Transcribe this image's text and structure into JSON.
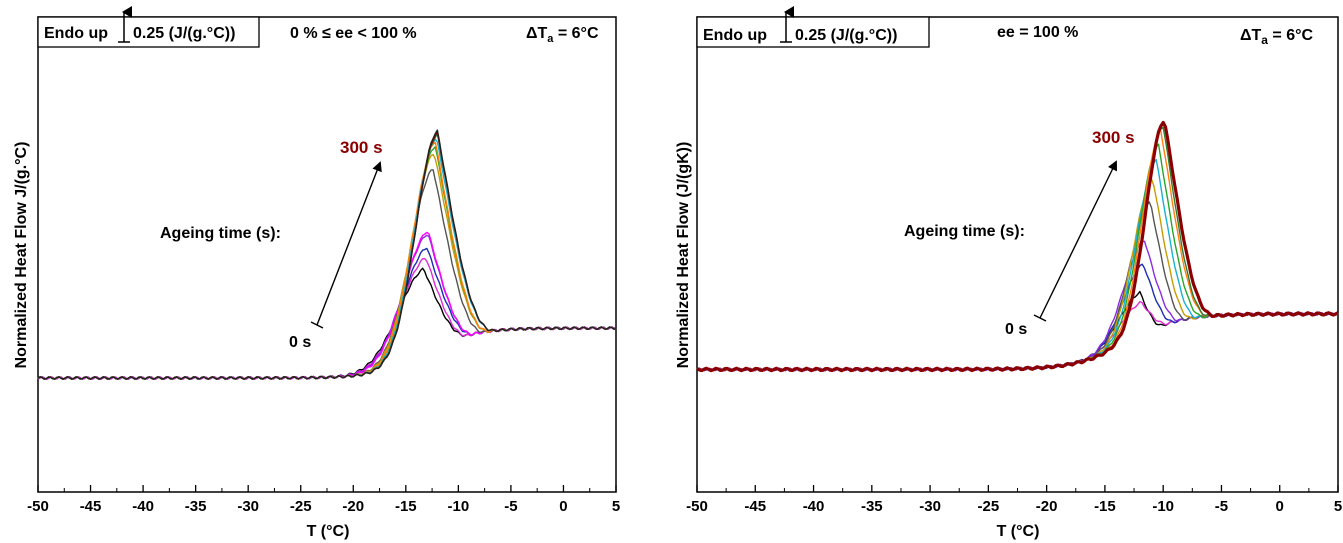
{
  "chart_data": [
    {
      "type": "line",
      "xlabel": "T (°C)",
      "ylabel": "Normalized Heat Flow J/(g.°C)",
      "xlim": [
        -50,
        5
      ],
      "xticks": [
        -50,
        -45,
        -40,
        -35,
        -30,
        -25,
        -20,
        -15,
        -10,
        -5,
        0,
        5
      ],
      "ylim": [
        0,
        1
      ],
      "grid": false,
      "legend_box": "Endo up",
      "scale_bar": "0.25 (J/(g.°C))",
      "condition": "0 % ≤ ee < 100 %",
      "delta_t": {
        "symbol": "ΔT",
        "sub": "a",
        "value": " = 6°C"
      },
      "arrow_start_label": "0 s",
      "arrow_end_label": "300 s",
      "arrow_caption": "Ageing time (s):",
      "baseline": {
        "base_left": 0.24,
        "base_right": 0.345,
        "x_lo": -50,
        "x_hi": 5
      },
      "series": [
        {
          "color": "#000000",
          "values": {
            "peak_x": -13.3,
            "peak_y": 0.47,
            "width": 3.6,
            "end_x": -9,
            "lw": 1.4
          }
        },
        {
          "color": "#e02bd6",
          "values": {
            "peak_x": -13.1,
            "peak_y": 0.494,
            "width": 3.5,
            "end_x": -9,
            "lw": 1.4
          }
        },
        {
          "color": "#1f2bb5",
          "values": {
            "peak_x": -13.0,
            "peak_y": 0.515,
            "width": 3.4,
            "end_x": -8.5,
            "lw": 1.4
          }
        },
        {
          "color": "#8a2be2",
          "values": {
            "peak_x": -12.9,
            "peak_y": 0.544,
            "width": 3.4,
            "end_x": -8.5,
            "lw": 1.4
          }
        },
        {
          "color": "#ff00ff",
          "values": {
            "peak_x": -12.9,
            "peak_y": 0.55,
            "width": 3.3,
            "end_x": -8.5,
            "lw": 1.4
          }
        },
        {
          "color": "#545454",
          "values": {
            "peak_x": -12.4,
            "peak_y": 0.68,
            "width": 3.1,
            "end_x": -7.5,
            "lw": 1.4
          }
        },
        {
          "color": "#c69c00",
          "values": {
            "peak_x": -12.3,
            "peak_y": 0.714,
            "width": 3.05,
            "end_x": -7,
            "lw": 1.4
          }
        },
        {
          "color": "#26a626",
          "values": {
            "peak_x": -12.2,
            "peak_y": 0.728,
            "width": 3.0,
            "end_x": -7,
            "lw": 1.4
          }
        },
        {
          "color": "#ff7f0e",
          "values": {
            "peak_x": -12.2,
            "peak_y": 0.738,
            "width": 3.0,
            "end_x": -7,
            "lw": 1.4
          }
        },
        {
          "color": "#1ab0d4",
          "values": {
            "peak_x": -12.1,
            "peak_y": 0.746,
            "width": 2.95,
            "end_x": -6.5,
            "lw": 1.4
          }
        },
        {
          "color": "#2e7d32",
          "values": {
            "peak_x": -12.0,
            "peak_y": 0.752,
            "width": 2.95,
            "end_x": -6.5,
            "lw": 1.4
          }
        },
        {
          "color": "#8b0000",
          "values": {
            "peak_x": -12.0,
            "peak_y": 0.756,
            "width": 2.9,
            "end_x": -6.5,
            "lw": 1.4
          }
        },
        {
          "color": "#222222",
          "values": {
            "peak_x": -12.0,
            "peak_y": 0.76,
            "width": 2.9,
            "end_x": -6.5,
            "lw": 1.4
          }
        }
      ]
    },
    {
      "type": "line",
      "xlabel": "T (°C)",
      "ylabel": "Normalized Heat Flow (J/(gK))",
      "xlim": [
        -50,
        5
      ],
      "xticks": [
        -50,
        -45,
        -40,
        -35,
        -30,
        -25,
        -20,
        -15,
        -10,
        -5,
        0,
        5
      ],
      "ylim": [
        0,
        1
      ],
      "grid": false,
      "legend_box": "Endo up",
      "scale_bar": "0.25 (J/(g.°C))",
      "condition": "ee = 100 %",
      "delta_t": {
        "symbol": "ΔT",
        "sub": "a",
        "value": " = 6°C"
      },
      "arrow_start_label": "0 s",
      "arrow_end_label": "300 s",
      "arrow_caption": "Ageing time (s):",
      "baseline": {
        "base_left": 0.258,
        "base_right": 0.375,
        "x_lo": -50,
        "x_hi": 5
      },
      "series": [
        {
          "color": "#000000",
          "values": {
            "peak_x": -12.0,
            "peak_y": 0.42,
            "width": 2.6,
            "end_x": -10,
            "lw": 1.4
          }
        },
        {
          "color": "#e02bd6",
          "values": {
            "peak_x": -11.9,
            "peak_y": 0.4,
            "width": 2.6,
            "end_x": -9.5,
            "lw": 1.4
          }
        },
        {
          "color": "#1f2bb5",
          "values": {
            "peak_x": -11.7,
            "peak_y": 0.48,
            "width": 2.5,
            "end_x": -9,
            "lw": 1.4
          }
        },
        {
          "color": "#8a2be2",
          "values": {
            "peak_x": -11.6,
            "peak_y": 0.53,
            "width": 2.5,
            "end_x": -8.5,
            "lw": 1.4
          }
        },
        {
          "color": "#545454",
          "values": {
            "peak_x": -11.1,
            "peak_y": 0.61,
            "width": 2.4,
            "end_x": -8,
            "lw": 1.4
          }
        },
        {
          "color": "#c69c00",
          "values": {
            "peak_x": -10.9,
            "peak_y": 0.66,
            "width": 2.3,
            "end_x": -7.5,
            "lw": 1.4
          }
        },
        {
          "color": "#1ab0d4",
          "values": {
            "peak_x": -10.6,
            "peak_y": 0.7,
            "width": 2.3,
            "end_x": -7,
            "lw": 1.4
          }
        },
        {
          "color": "#26a626",
          "values": {
            "peak_x": -10.4,
            "peak_y": 0.73,
            "width": 2.25,
            "end_x": -6.5,
            "lw": 1.4
          }
        },
        {
          "color": "#ff7f0e",
          "values": {
            "peak_x": -10.2,
            "peak_y": 0.76,
            "width": 2.2,
            "end_x": -6,
            "lw": 1.4
          }
        },
        {
          "color": "#2e7d32",
          "values": {
            "peak_x": -10.0,
            "peak_y": 0.77,
            "width": 2.2,
            "end_x": -6,
            "lw": 1.4
          }
        },
        {
          "color": "#8b0000",
          "values": {
            "peak_x": -9.9,
            "peak_y": 0.782,
            "width": 2.2,
            "end_x": -5.5,
            "lw": 3.2
          }
        }
      ]
    }
  ]
}
